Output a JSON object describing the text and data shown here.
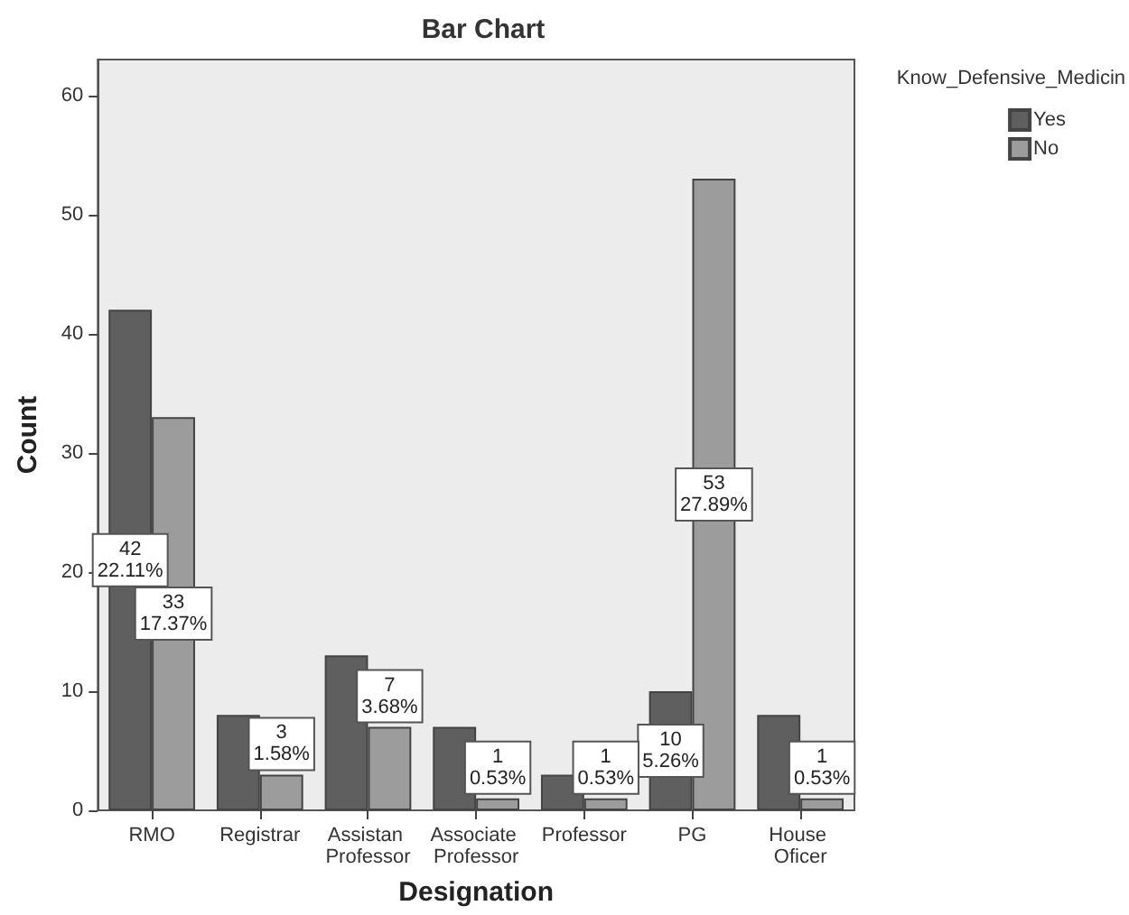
{
  "chart_data": {
    "type": "bar",
    "title": "Bar Chart",
    "xlabel": "Designation",
    "ylabel": "Count",
    "legend_title": "Know_Defensive_Medicin",
    "categories": [
      "RMO",
      "Registrar",
      "Assistan Professor",
      "Associate Professor",
      "Professor",
      "PG",
      "House Oficer"
    ],
    "series": [
      {
        "name": "Yes",
        "color": "#5f5f5f",
        "values": [
          42,
          8,
          13,
          7,
          3,
          10,
          8
        ],
        "value_labels": [
          "42\n22.11%",
          null,
          null,
          null,
          null,
          "10\n5.26%",
          null
        ]
      },
      {
        "name": "No",
        "color": "#9c9c9c",
        "values": [
          33,
          3,
          7,
          1,
          1,
          53,
          1
        ],
        "value_labels": [
          "33\n17.37%",
          "3\n1.58%",
          "7\n3.68%",
          "1\n0.53%",
          "1\n0.53%",
          "53\n27.89%",
          "1\n0.53%"
        ]
      }
    ],
    "ylim": [
      0,
      63
    ],
    "yticks": [
      0,
      10,
      20,
      30,
      40,
      50,
      60
    ],
    "grid": false,
    "legend": "right"
  }
}
